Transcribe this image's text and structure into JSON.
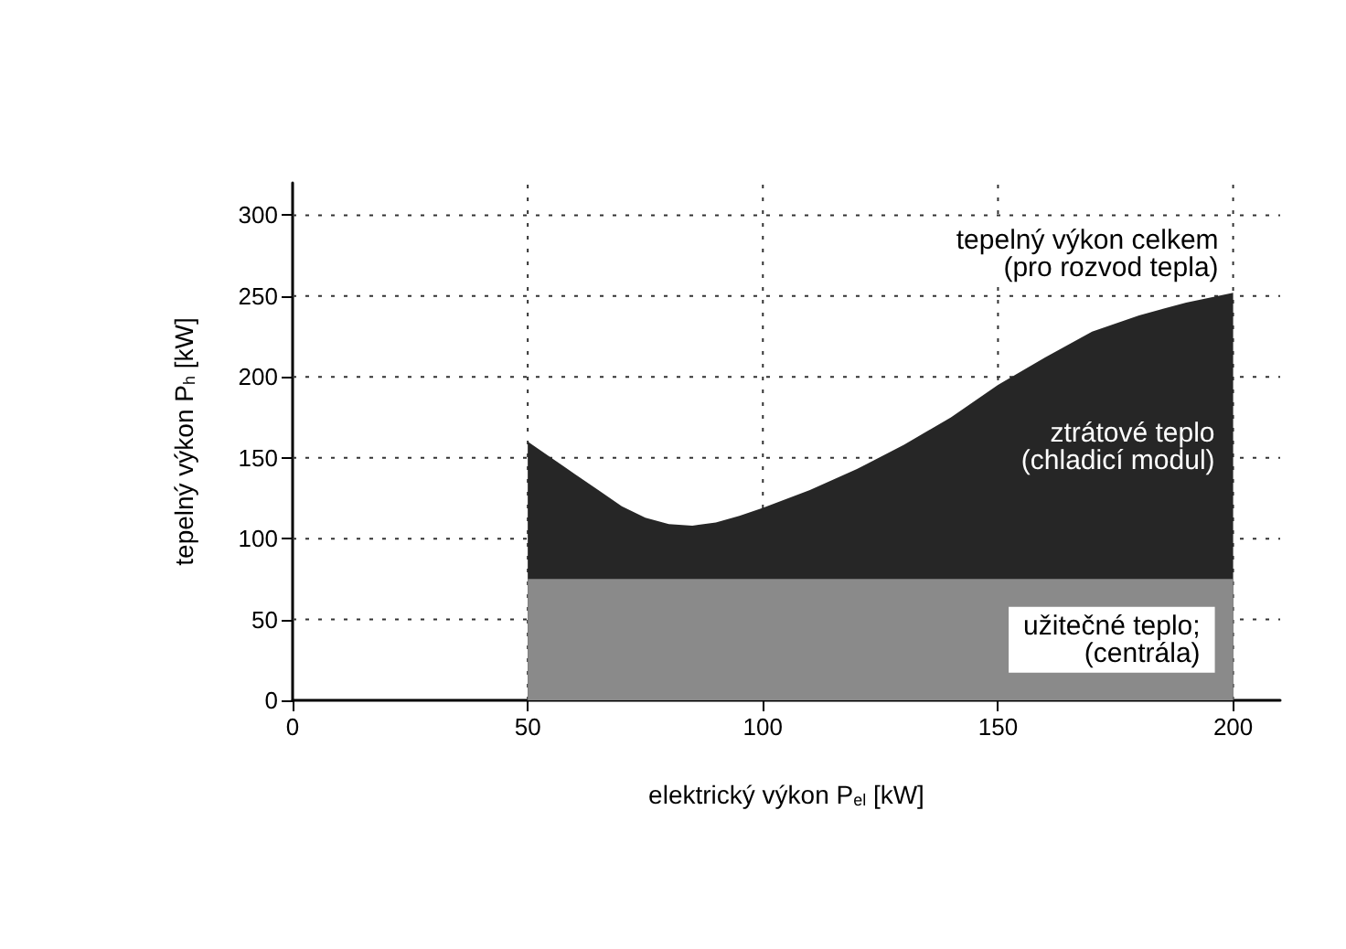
{
  "chart_data": {
    "type": "area",
    "stacked": true,
    "xlabel": "elektrický výkon P$_{el}$ [kW]",
    "ylabel": "tepelný výkon P$_{h}$ [kW]",
    "x": [
      50,
      55,
      60,
      65,
      70,
      75,
      80,
      85,
      90,
      95,
      100,
      110,
      120,
      130,
      140,
      150,
      160,
      170,
      180,
      190,
      200
    ],
    "series": [
      {
        "name": "užitečné teplo;\n(centrála)",
        "color": "#8a8a8a",
        "values": [
          75,
          75,
          75,
          75,
          75,
          75,
          75,
          75,
          75,
          75,
          75,
          75,
          75,
          75,
          75,
          75,
          75,
          75,
          75,
          75,
          75
        ]
      },
      {
        "name": "ztrátové teplo\n(chladicí modul)",
        "color": "#262626",
        "values": [
          85,
          75,
          65,
          55,
          45,
          38,
          34,
          33,
          35,
          39,
          44,
          55,
          68,
          83,
          100,
          120,
          137,
          153,
          163,
          171,
          177
        ]
      }
    ],
    "annotations": [
      "tepelný výkon celkem\n(pro rozvod tepla)"
    ],
    "xlim": [
      0,
      210
    ],
    "ylim": [
      0,
      320
    ],
    "xticks": [
      0,
      50,
      100,
      150,
      200
    ],
    "yticks": [
      0,
      50,
      100,
      150,
      200,
      250,
      300
    ],
    "grid": true,
    "legend": false,
    "marker": "none"
  }
}
